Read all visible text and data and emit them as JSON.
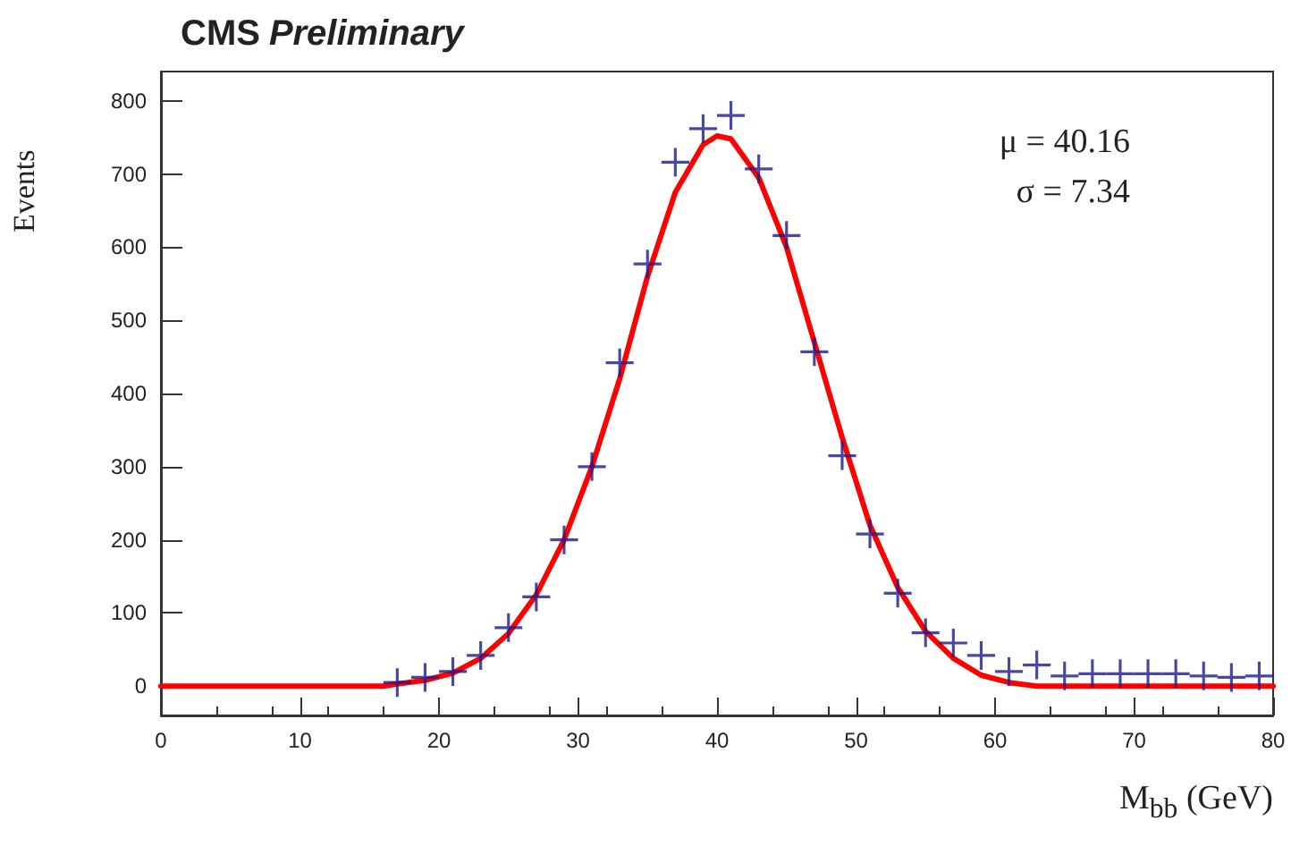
{
  "chart_data": {
    "type": "scatter",
    "title": "CMS Preliminary",
    "xlabel": "M$_{bb}$ (GeV)",
    "ylabel": "Events",
    "annotations": [
      "μ = 40.16",
      "σ = 7.34"
    ],
    "xlim": [
      0,
      80
    ],
    "xticks": [
      0,
      10,
      20,
      30,
      40,
      50,
      60,
      70,
      80
    ],
    "ylim": [
      -40,
      840
    ],
    "yticks": [
      0,
      100,
      200,
      300,
      400,
      500,
      600,
      700,
      800
    ],
    "grid": false,
    "series": [
      {
        "color": "#1a1a8c",
        "marker": "cross",
        "x": [
          17,
          19,
          21,
          23,
          25,
          27,
          29,
          31,
          33,
          35,
          37,
          39,
          41,
          43,
          45,
          47,
          49,
          51,
          53,
          55,
          57,
          59,
          61,
          63,
          65,
          67,
          69,
          71,
          73,
          75,
          77,
          79
        ],
        "values": [
          5,
          12,
          20,
          42,
          80,
          122,
          200,
          300,
          442,
          577,
          716,
          762,
          780,
          707,
          616,
          457,
          315,
          208,
          127,
          73,
          59,
          42,
          20,
          29,
          14,
          17,
          17,
          17,
          17,
          14,
          12,
          14
        ],
        "xerrors": [
          1,
          1,
          1,
          1,
          1,
          1,
          1,
          1,
          1,
          1,
          1,
          1,
          1,
          1,
          1,
          1,
          1,
          1,
          1,
          1,
          1,
          1,
          1,
          1,
          1,
          1,
          1,
          1,
          1,
          1,
          1,
          1
        ]
      },
      {
        "type": "line",
        "color": "#ff0000",
        "line_style": "solid",
        "marker": "none",
        "x": [
          0,
          16,
          17,
          19,
          21,
          23,
          25,
          27,
          29,
          31,
          33,
          35,
          37,
          39,
          40,
          41,
          43,
          45,
          47,
          49,
          51,
          53,
          55,
          57,
          59,
          61,
          63,
          80
        ],
        "values": [
          0,
          0,
          3,
          8,
          18,
          38,
          72,
          125,
          200,
          300,
          420,
          560,
          675,
          740,
          752,
          748,
          695,
          600,
          470,
          340,
          220,
          135,
          75,
          38,
          15,
          5,
          0,
          0
        ]
      }
    ]
  }
}
